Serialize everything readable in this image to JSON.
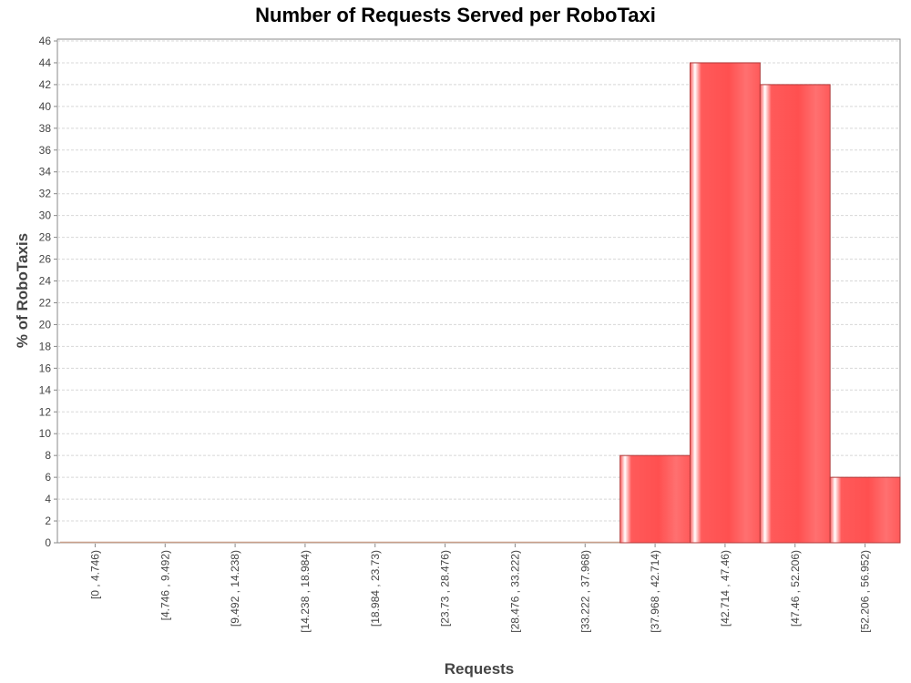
{
  "chart_data": {
    "type": "bar",
    "title": "Number of Requests Served per RoboTaxi",
    "xlabel": "Requests",
    "ylabel": "% of RoboTaxis",
    "categories": [
      "[0 , 4.746)",
      "[4.746 , 9.492)",
      "[9.492 , 14.238)",
      "[14.238 , 18.984)",
      "[18.984 , 23.73)",
      "[23.73 , 28.476)",
      "[28.476 , 33.222)",
      "[33.222 , 37.968)",
      "[37.968 , 42.714)",
      "[42.714 , 47.46)",
      "[47.46 , 52.206)",
      "[52.206 , 56.952)"
    ],
    "values": [
      0,
      0,
      0,
      0,
      0,
      0,
      0,
      0,
      8,
      44,
      42,
      6
    ],
    "ylim": [
      0,
      46
    ],
    "ytick_step": 2,
    "grid": true,
    "legend": "none",
    "colors": {
      "bar_fill": "#ff5a5a",
      "bar_highlight": "#ffffff",
      "bar_edge": "#b03a3a",
      "grid": "#d8d8d8",
      "plot_border": "#888888"
    }
  }
}
